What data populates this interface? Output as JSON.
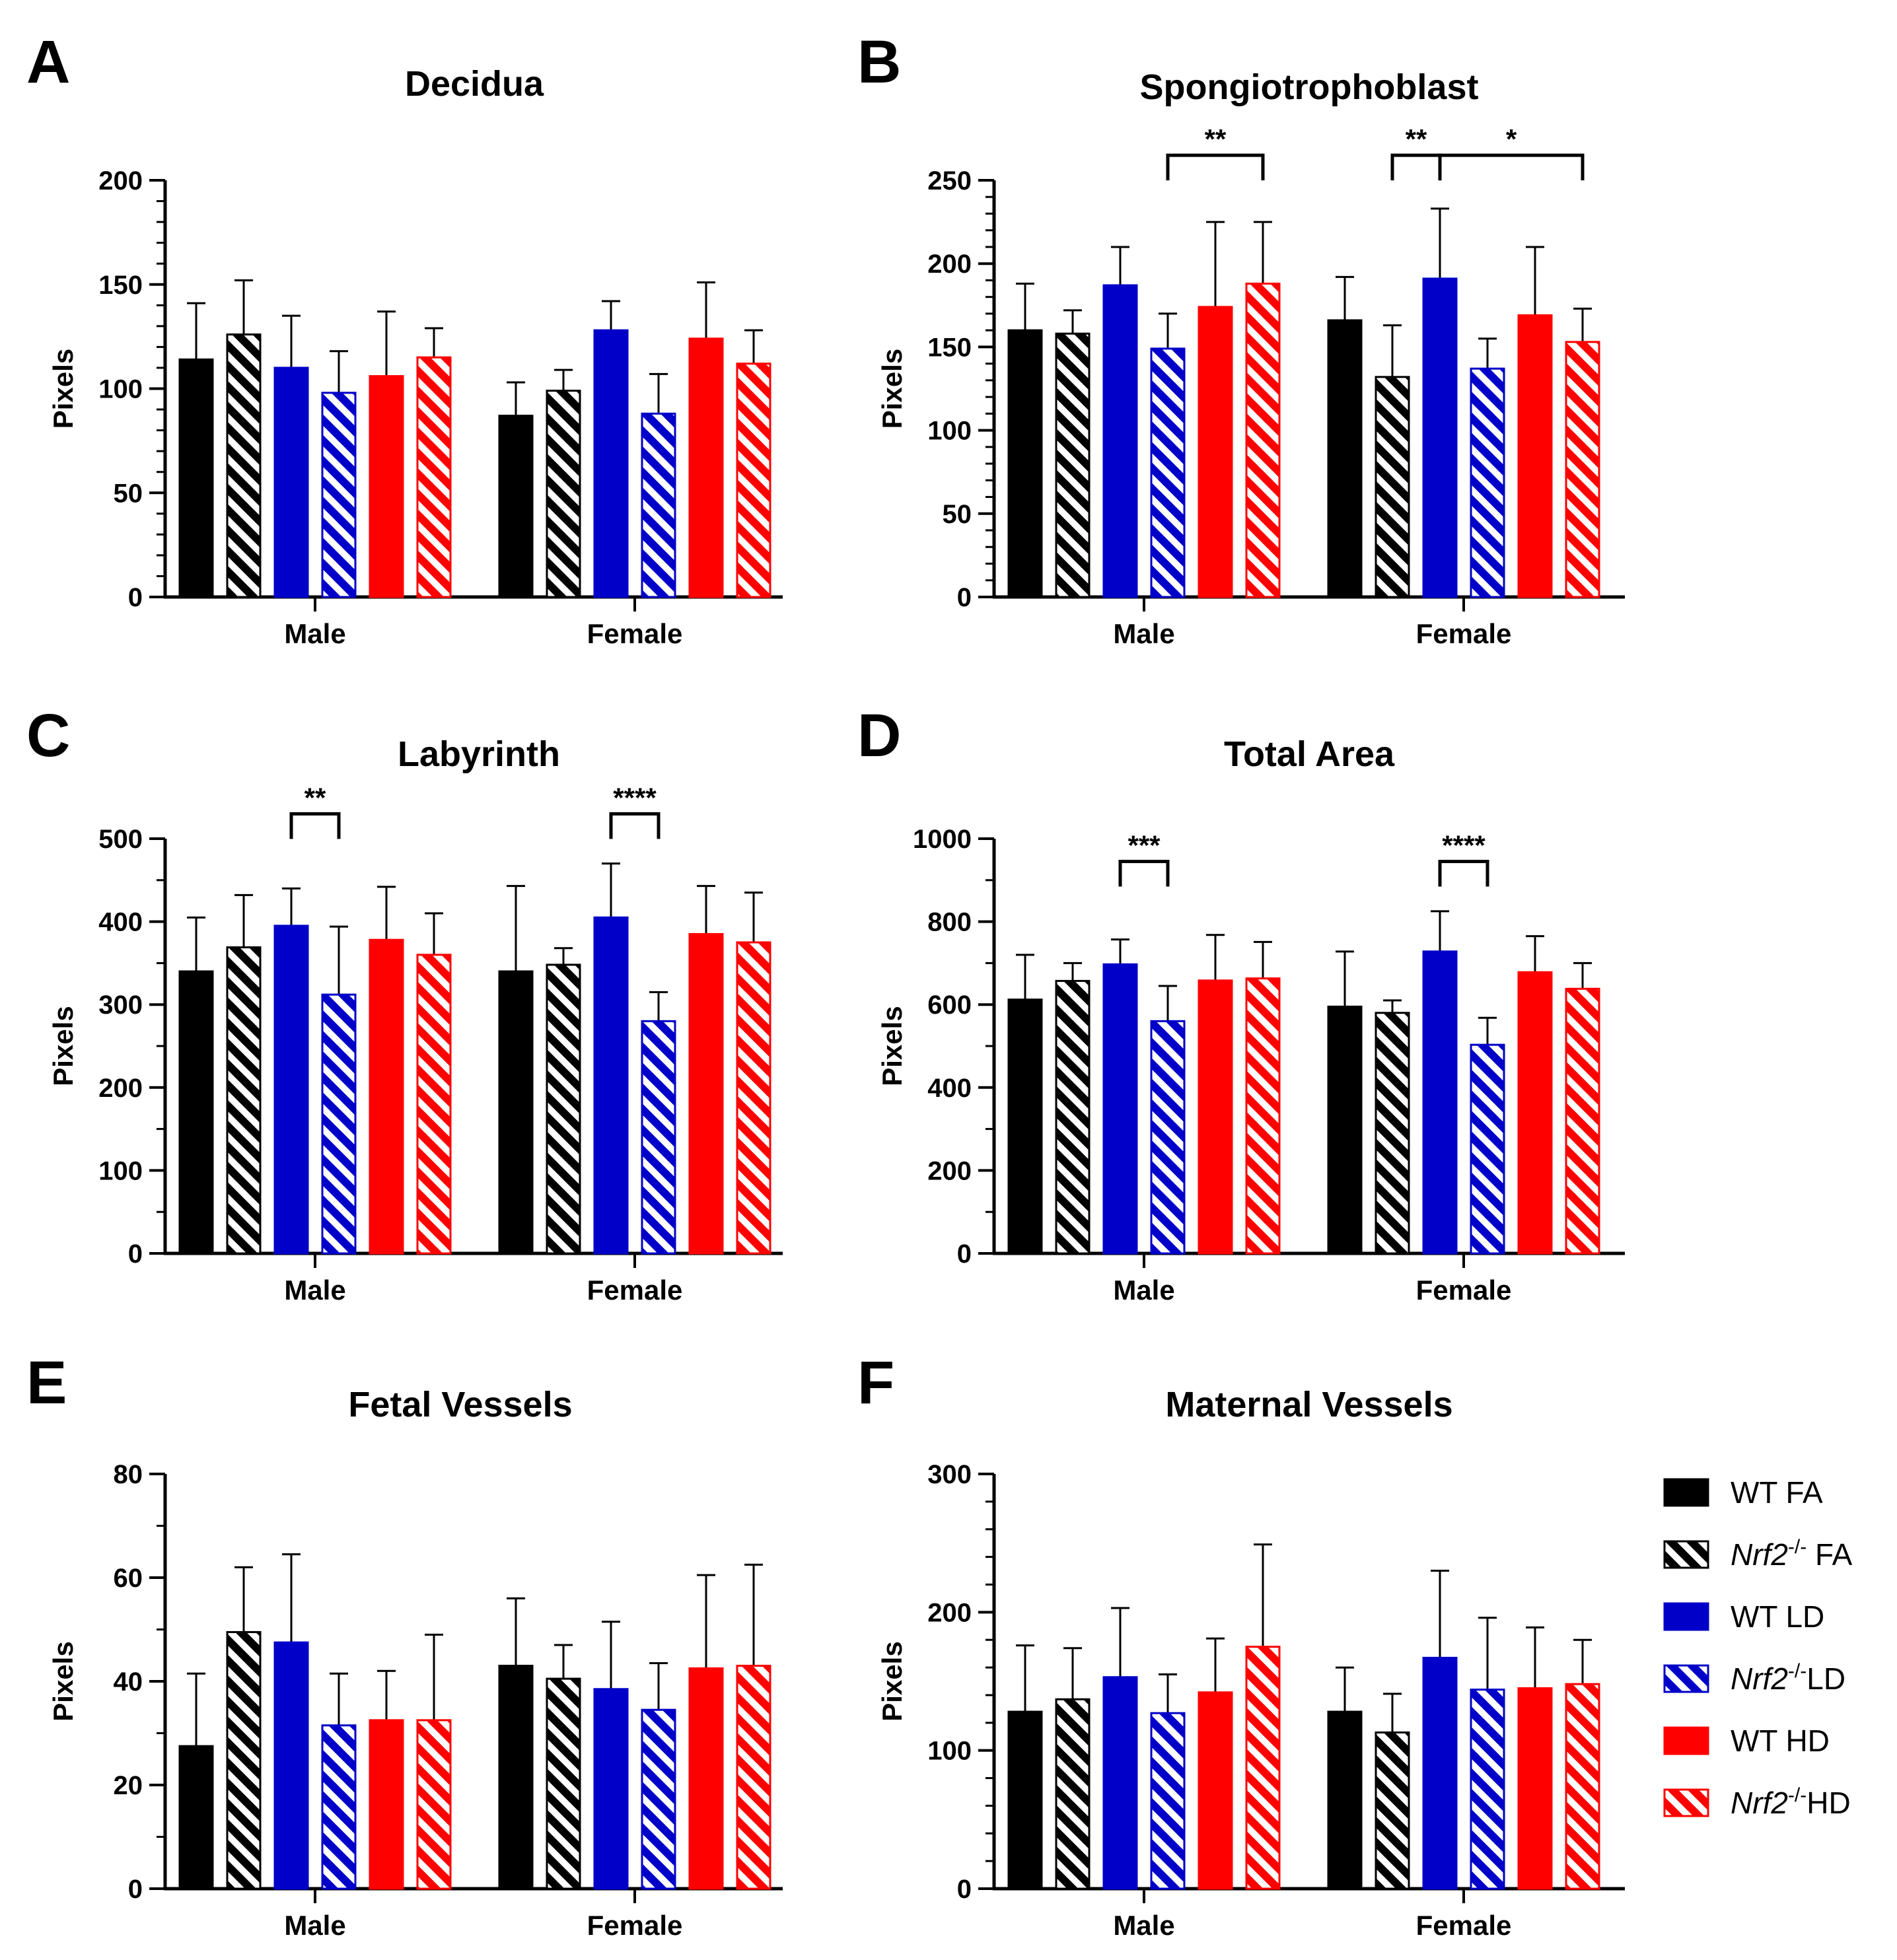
{
  "legend": {
    "entries": [
      {
        "key": "wt_fa",
        "label_main": "WT FA",
        "label_sup": "",
        "label_rest": ""
      },
      {
        "key": "nrf2_fa",
        "label_main": "Nrf2",
        "label_sup": "-/-",
        "label_rest": " FA"
      },
      {
        "key": "wt_ld",
        "label_main": "WT LD",
        "label_sup": "",
        "label_rest": ""
      },
      {
        "key": "nrf2_ld",
        "label_main": "Nrf2",
        "label_sup": "-/-",
        "label_rest": "LD"
      },
      {
        "key": "wt_hd",
        "label_main": "WT HD",
        "label_sup": "",
        "label_rest": ""
      },
      {
        "key": "nrf2_hd",
        "label_main": "Nrf2",
        "label_sup": "-/-",
        "label_rest": "HD"
      }
    ],
    "colors": {
      "black": "#000000",
      "blue": "#0000c8",
      "red": "#ff0000"
    }
  },
  "chart_data": [
    {
      "panel": "A",
      "type": "bar",
      "title": "Decidua",
      "ylabel": "Pixels",
      "ylim": [
        0,
        200
      ],
      "yticks": [
        0,
        50,
        100,
        150,
        200
      ],
      "minor_ticks": 5,
      "categories": [
        "Male",
        "Female"
      ],
      "series": [
        {
          "name": "WT FA",
          "values": [
            114,
            87
          ],
          "errors": [
            27,
            16
          ]
        },
        {
          "name": "Nrf2-/- FA",
          "values": [
            126,
            99
          ],
          "errors": [
            26,
            10
          ]
        },
        {
          "name": "WT LD",
          "values": [
            110,
            128
          ],
          "errors": [
            25,
            14
          ]
        },
        {
          "name": "Nrf2-/- LD",
          "values": [
            98,
            88
          ],
          "errors": [
            20,
            19
          ]
        },
        {
          "name": "WT HD",
          "values": [
            106,
            124
          ],
          "errors": [
            31,
            27
          ]
        },
        {
          "name": "Nrf2-/- HD",
          "values": [
            115,
            112
          ],
          "errors": [
            14,
            16
          ]
        }
      ],
      "significance": []
    },
    {
      "panel": "B",
      "type": "bar",
      "title": "Spongiotrophoblast",
      "ylabel": "Pixels",
      "ylim": [
        0,
        250
      ],
      "yticks": [
        0,
        50,
        100,
        150,
        200,
        250
      ],
      "minor_ticks": 5,
      "categories": [
        "Male",
        "Female"
      ],
      "series": [
        {
          "name": "WT FA",
          "values": [
            160,
            166
          ],
          "errors": [
            28,
            26
          ]
        },
        {
          "name": "Nrf2-/- FA",
          "values": [
            158,
            132
          ],
          "errors": [
            14,
            31
          ]
        },
        {
          "name": "WT LD",
          "values": [
            187,
            191
          ],
          "errors": [
            23,
            42
          ]
        },
        {
          "name": "Nrf2-/- LD",
          "values": [
            149,
            137
          ],
          "errors": [
            21,
            18
          ]
        },
        {
          "name": "WT HD",
          "values": [
            174,
            169
          ],
          "errors": [
            51,
            41
          ]
        },
        {
          "name": "Nrf2-/- HD",
          "values": [
            188,
            153
          ],
          "errors": [
            37,
            20
          ]
        }
      ],
      "significance": [
        {
          "cat": 0,
          "from": 3,
          "to": 5,
          "at": 265,
          "label": "**"
        },
        {
          "cat": 1,
          "from": 1,
          "to": 2,
          "at": 265,
          "label": "**"
        },
        {
          "cat": 1,
          "from": 2,
          "to": 5,
          "at": 265,
          "label": "*"
        }
      ]
    },
    {
      "panel": "C",
      "type": "bar",
      "title": "Labyrinth",
      "ylabel": "Pixels",
      "ylim": [
        0,
        500
      ],
      "yticks": [
        0,
        100,
        200,
        300,
        400,
        500
      ],
      "minor_ticks": 2,
      "categories": [
        "Male",
        "Female"
      ],
      "series": [
        {
          "name": "WT FA",
          "values": [
            340,
            340
          ],
          "errors": [
            65,
            103
          ]
        },
        {
          "name": "Nrf2-/- FA",
          "values": [
            369,
            348
          ],
          "errors": [
            63,
            20
          ]
        },
        {
          "name": "WT LD",
          "values": [
            395,
            405
          ],
          "errors": [
            45,
            65
          ]
        },
        {
          "name": "Nrf2-/- LD",
          "values": [
            312,
            280
          ],
          "errors": [
            82,
            35
          ]
        },
        {
          "name": "WT HD",
          "values": [
            378,
            385
          ],
          "errors": [
            64,
            58
          ]
        },
        {
          "name": "Nrf2-/- HD",
          "values": [
            360,
            375
          ],
          "errors": [
            50,
            60
          ]
        }
      ],
      "significance": [
        {
          "cat": 0,
          "from": 2,
          "to": 3,
          "at": 530,
          "label": "**"
        },
        {
          "cat": 1,
          "from": 2,
          "to": 3,
          "at": 530,
          "label": "****"
        }
      ]
    },
    {
      "panel": "D",
      "type": "bar",
      "title": "Total Area",
      "ylabel": "Pixels",
      "ylim": [
        0,
        1000
      ],
      "yticks": [
        0,
        200,
        400,
        600,
        800,
        1000
      ],
      "minor_ticks": 2,
      "categories": [
        "Male",
        "Female"
      ],
      "series": [
        {
          "name": "WT FA",
          "values": [
            612,
            595
          ],
          "errors": [
            108,
            133
          ]
        },
        {
          "name": "Nrf2-/- FA",
          "values": [
            657,
            580
          ],
          "errors": [
            43,
            30
          ]
        },
        {
          "name": "WT LD",
          "values": [
            697,
            728
          ],
          "errors": [
            60,
            97
          ]
        },
        {
          "name": "Nrf2-/- LD",
          "values": [
            560,
            503
          ],
          "errors": [
            85,
            65
          ]
        },
        {
          "name": "WT HD",
          "values": [
            658,
            678
          ],
          "errors": [
            110,
            87
          ]
        },
        {
          "name": "Nrf2-/- HD",
          "values": [
            663,
            638
          ],
          "errors": [
            88,
            62
          ]
        }
      ],
      "significance": [
        {
          "cat": 0,
          "from": 2,
          "to": 3,
          "at": 945,
          "label": "***"
        },
        {
          "cat": 1,
          "from": 2,
          "to": 3,
          "at": 945,
          "label": "****"
        }
      ]
    },
    {
      "panel": "E",
      "type": "bar",
      "title": "Fetal Vessels",
      "ylabel": "Pixels",
      "ylim": [
        0,
        80
      ],
      "yticks": [
        0,
        20,
        40,
        60,
        80
      ],
      "minor_ticks": 2,
      "categories": [
        "Male",
        "Female"
      ],
      "series": [
        {
          "name": "WT FA",
          "values": [
            27.5,
            43
          ],
          "errors": [
            14,
            13
          ]
        },
        {
          "name": "Nrf2-/- FA",
          "values": [
            49.5,
            40.5
          ],
          "errors": [
            12.5,
            6.5
          ]
        },
        {
          "name": "WT LD",
          "values": [
            47.5,
            38.5
          ],
          "errors": [
            17,
            13
          ]
        },
        {
          "name": "Nrf2-/- LD",
          "values": [
            31.5,
            34.5
          ],
          "errors": [
            10,
            9
          ]
        },
        {
          "name": "WT HD",
          "values": [
            32.5,
            42.5
          ],
          "errors": [
            9.5,
            18
          ]
        },
        {
          "name": "Nrf2-/- HD",
          "values": [
            32.5,
            43
          ],
          "errors": [
            16.5,
            19.5
          ]
        }
      ],
      "significance": []
    },
    {
      "panel": "F",
      "type": "bar",
      "title": "Maternal Vessels",
      "ylabel": "Pixels",
      "ylim": [
        0,
        300
      ],
      "yticks": [
        0,
        100,
        200,
        300
      ],
      "minor_ticks": 5,
      "categories": [
        "Male",
        "Female"
      ],
      "series": [
        {
          "name": "WT FA",
          "values": [
            128,
            128
          ],
          "errors": [
            48,
            32
          ]
        },
        {
          "name": "Nrf2-/- FA",
          "values": [
            137,
            113
          ],
          "errors": [
            37,
            28
          ]
        },
        {
          "name": "WT LD",
          "values": [
            153,
            167
          ],
          "errors": [
            50,
            63
          ]
        },
        {
          "name": "Nrf2-/- LD",
          "values": [
            127,
            144
          ],
          "errors": [
            28,
            52
          ]
        },
        {
          "name": "WT HD",
          "values": [
            142,
            145
          ],
          "errors": [
            39,
            44
          ]
        },
        {
          "name": "Nrf2-/- HD",
          "values": [
            175,
            148
          ],
          "errors": [
            74,
            32
          ]
        }
      ],
      "significance": []
    }
  ]
}
